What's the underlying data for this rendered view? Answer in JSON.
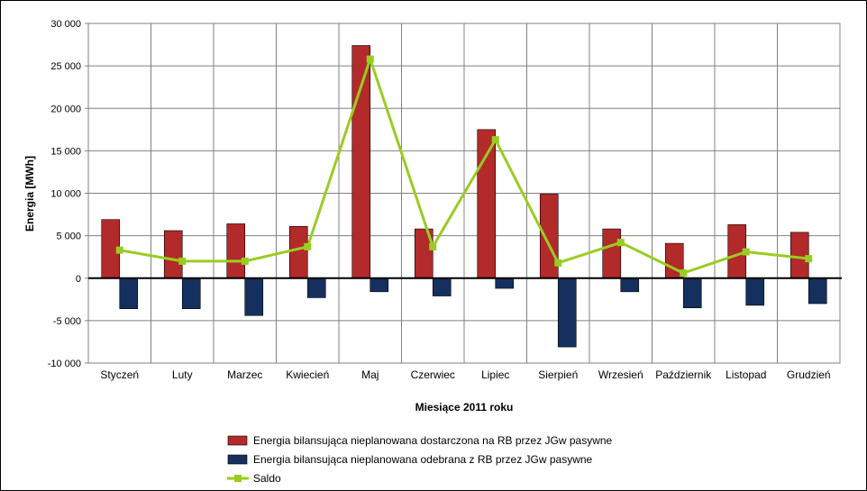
{
  "chart_data": {
    "type": "bar",
    "title": "",
    "xlabel": "Miesiące 2011  roku",
    "ylabel": "Energia  [MWh]",
    "ylim": [
      -10000,
      30000
    ],
    "yticks": [
      30000,
      25000,
      20000,
      15000,
      10000,
      5000,
      0,
      -5000,
      -10000
    ],
    "ytick_labels": [
      "30 000",
      "25 000",
      "20 000",
      "15 000",
      "10 000",
      "5 000",
      "0",
      "-5 000",
      "-10 000"
    ],
    "grid": true,
    "legend_position": "bottom",
    "categories": [
      "Styczeń",
      "Luty",
      "Marzec",
      "Kwiecień",
      "Maj",
      "Czerwiec",
      "Lipiec",
      "Sierpień",
      "Wrzesień",
      "Październik",
      "Listopad",
      "Grudzień"
    ],
    "series": [
      {
        "name": "Energia bilansująca nieplanowana dostarczona na RB przez JGw pasywne",
        "kind": "bar",
        "color": "#b22a2a",
        "values": [
          6900,
          5600,
          6400,
          6100,
          27400,
          5800,
          17500,
          9900,
          5800,
          4100,
          6300,
          5400
        ]
      },
      {
        "name": "Energia bilansująca nieplanowana odebrana z RB przez JGw pasywne",
        "kind": "bar",
        "color": "#15305e",
        "values": [
          -3600,
          -3600,
          -4400,
          -2300,
          -1600,
          -2100,
          -1200,
          -8100,
          -1600,
          -3500,
          -3200,
          -3000
        ]
      },
      {
        "name": "Saldo",
        "kind": "line",
        "color": "#99cc22",
        "values": [
          3300,
          2000,
          2000,
          3700,
          25800,
          3700,
          16300,
          1800,
          4200,
          600,
          3100,
          2300
        ]
      }
    ]
  }
}
